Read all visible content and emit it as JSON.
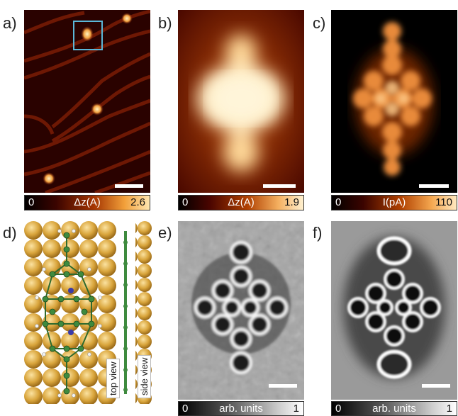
{
  "panels": {
    "a": {
      "label": "a)",
      "cbar_min": "0",
      "cbar_unit": "Δz(A)",
      "cbar_max": "2.6"
    },
    "b": {
      "label": "b)",
      "cbar_min": "0",
      "cbar_unit": "Δz(A)",
      "cbar_max": "1.9"
    },
    "c": {
      "label": "c)",
      "cbar_min": "0",
      "cbar_unit": "I(pA)",
      "cbar_max": "110"
    },
    "d": {
      "label": "d)",
      "top_view": "top view",
      "side_view": "side view"
    },
    "e": {
      "label": "e)",
      "cbar_min": "0",
      "cbar_unit": "arb. units",
      "cbar_max": "1"
    },
    "f": {
      "label": "f)",
      "cbar_min": "0",
      "cbar_unit": "arb. units",
      "cbar_max": "1"
    }
  },
  "colors": {
    "afm_dark": "#1a0000",
    "afm_mid": "#8b2a00",
    "afm_bright": "#ffd27a",
    "gold": "#d9a53c",
    "carbon": "#3e8a3e",
    "nitrogen": "#3a3aa8"
  }
}
